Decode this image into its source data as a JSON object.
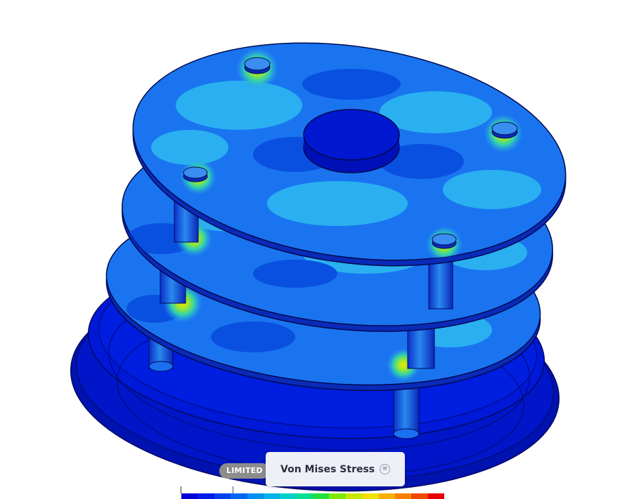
{
  "result_selector": {
    "label": "Von Mises Stress",
    "menu_icon": "menu-icon"
  },
  "badge": {
    "label": "LIMITED"
  },
  "legend": {
    "colors": [
      "#0000d8",
      "#0018e8",
      "#0040f0",
      "#0068f0",
      "#0090f0",
      "#00b4e8",
      "#00d0c8",
      "#00e090",
      "#20e040",
      "#80e800",
      "#c8e800",
      "#f0e000",
      "#f8b000",
      "#f88000",
      "#f04800",
      "#e80000"
    ]
  },
  "colors": {
    "base_dark": "#0010a8",
    "base_mid": "#0018d8",
    "plate_low": "#0a55e8",
    "plate_mid": "#1a7cf0",
    "plate_high": "#2ab6f2",
    "hotspot_inner": "#e8e000",
    "hotspot_outer": "#30d0a0"
  }
}
